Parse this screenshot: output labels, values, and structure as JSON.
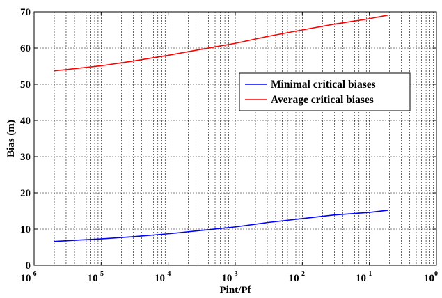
{
  "chart_data": {
    "type": "line",
    "title": "",
    "xlabel": "Pint/Pf",
    "ylabel": "Bias (m)",
    "xscale": "log",
    "xlim": [
      1e-06,
      1
    ],
    "ylim": [
      0,
      70
    ],
    "x_ticks": [
      {
        "base": "10",
        "exp": "-6"
      },
      {
        "base": "10",
        "exp": "-5"
      },
      {
        "base": "10",
        "exp": "-4"
      },
      {
        "base": "10",
        "exp": "-3"
      },
      {
        "base": "10",
        "exp": "-2"
      },
      {
        "base": "10",
        "exp": "-1"
      },
      {
        "base": "10",
        "exp": "0"
      }
    ],
    "y_ticks": [
      "0",
      "10",
      "20",
      "30",
      "40",
      "50",
      "60",
      "70"
    ],
    "grid": true,
    "legend_position": "right",
    "x": [
      2e-06,
      1e-05,
      3e-05,
      0.0001,
      0.0003,
      0.001,
      0.003,
      0.01,
      0.03,
      0.1,
      0.19
    ],
    "series": [
      {
        "name": "Minimal critical biases",
        "color": "#0000ff",
        "values": [
          6.6,
          7.3,
          7.9,
          8.7,
          9.6,
          10.6,
          11.8,
          12.9,
          13.9,
          14.6,
          15.2
        ]
      },
      {
        "name": "Average critical biases",
        "color": "#ff0000",
        "values": [
          53.7,
          55.1,
          56.4,
          58.0,
          59.6,
          61.3,
          63.2,
          65.0,
          66.6,
          68.1,
          69.1
        ]
      }
    ]
  }
}
